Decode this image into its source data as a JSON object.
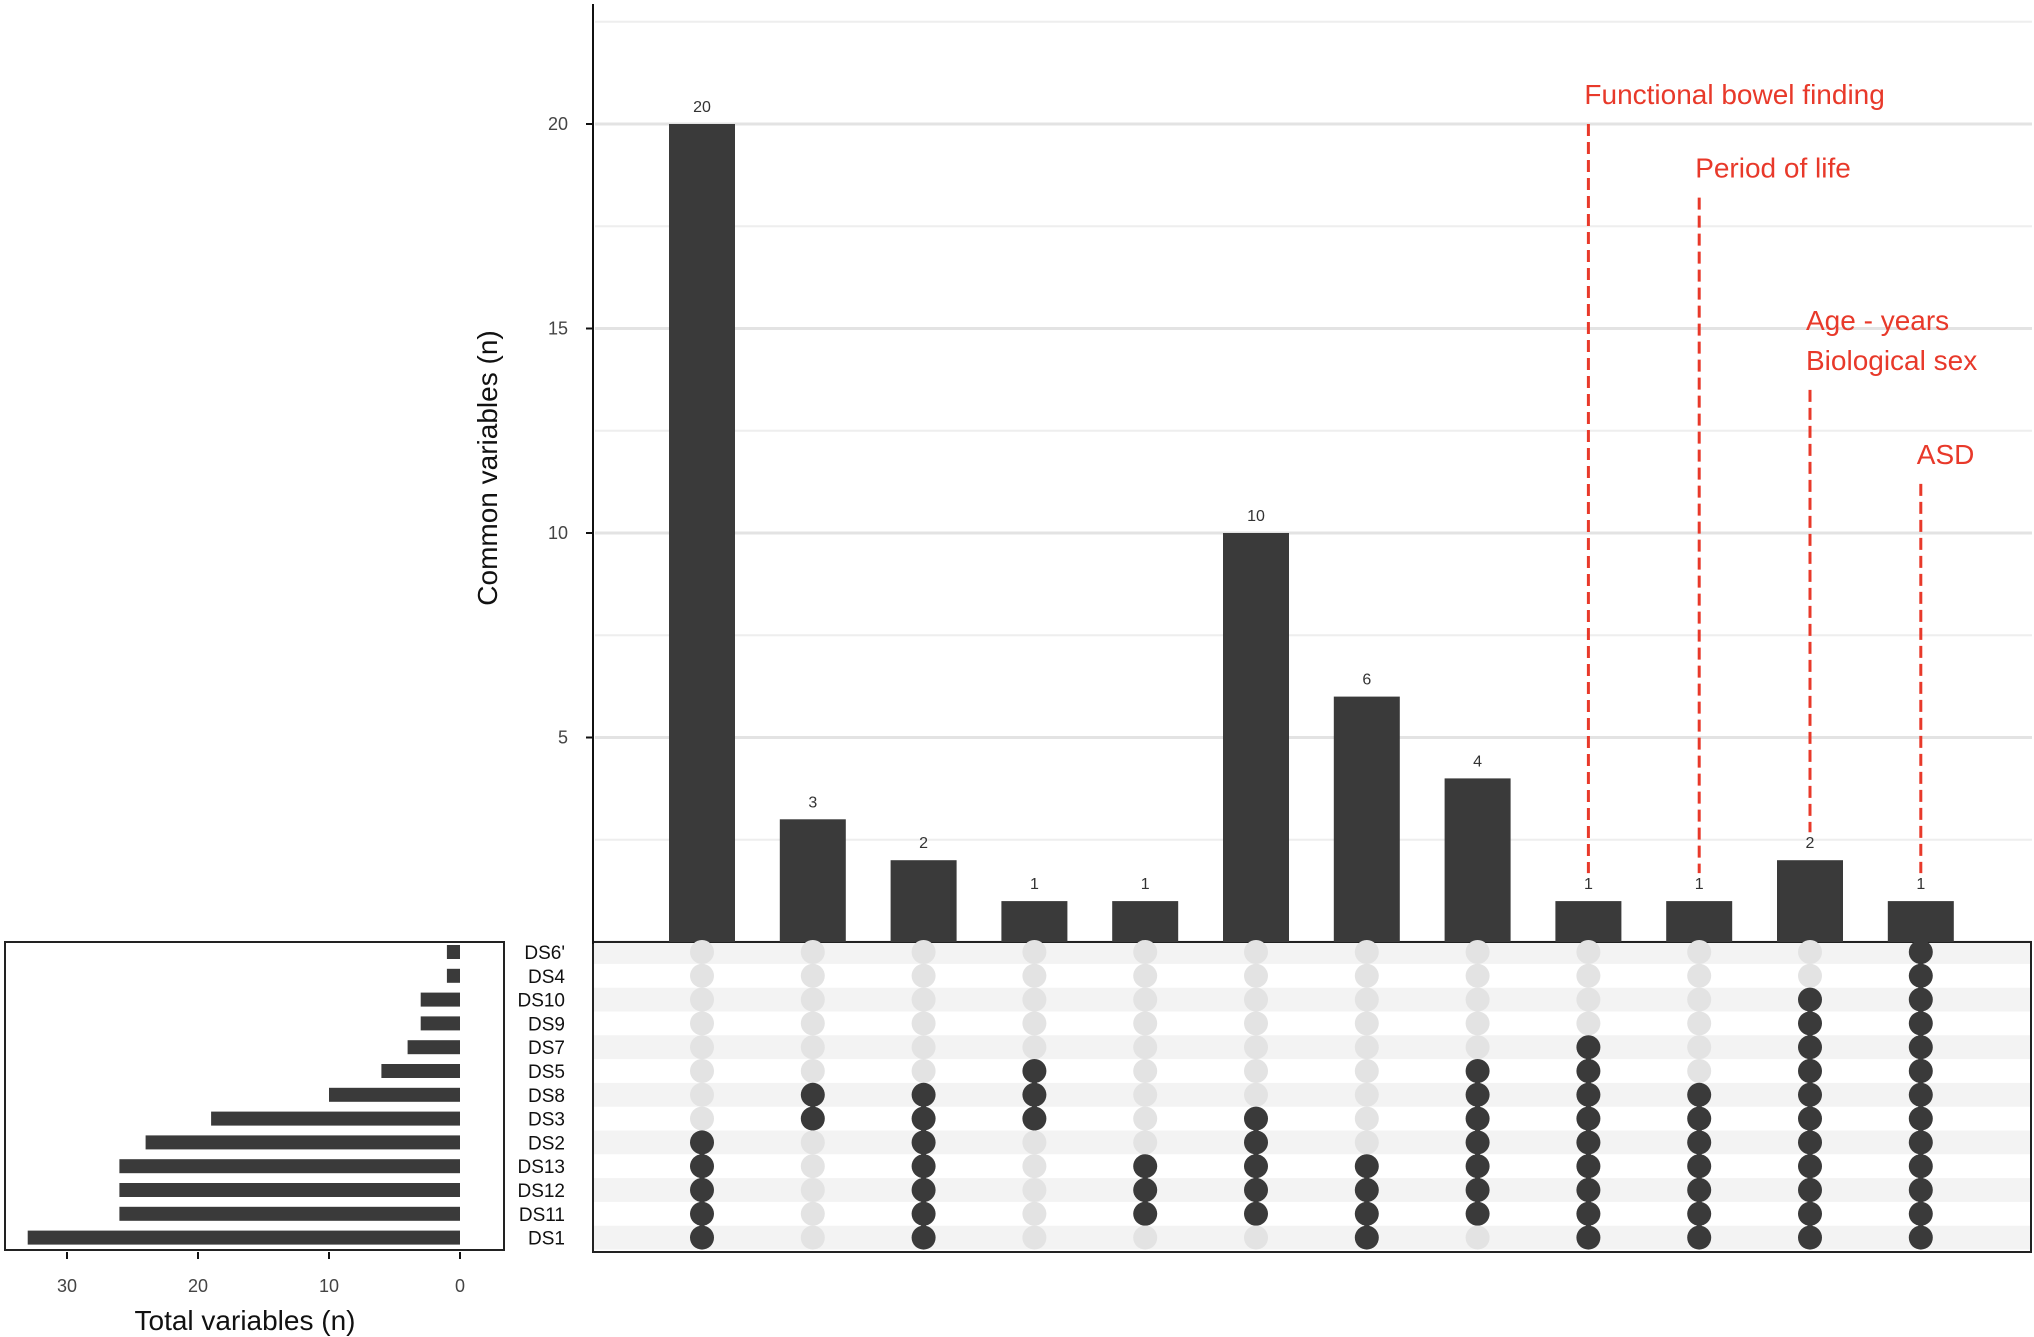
{
  "chart_data": [
    {
      "type": "bar",
      "ylabel": "Common variables (n)",
      "ylim": [
        0,
        22.5
      ],
      "yticks": [
        5,
        10,
        15,
        20
      ],
      "grid": true,
      "values": [
        20,
        3,
        2,
        1,
        1,
        10,
        6,
        4,
        1,
        1,
        2,
        1
      ],
      "value_labels": [
        "20",
        "3",
        "2",
        "1",
        "1",
        "10",
        "6",
        "4",
        "1",
        "1",
        "2",
        "1"
      ],
      "intersections": [
        [
          "DS2",
          "DS13",
          "DS12",
          "DS11",
          "DS1"
        ],
        [
          "DS8",
          "DS3"
        ],
        [
          "DS8",
          "DS3",
          "DS2",
          "DS13",
          "DS12",
          "DS11",
          "DS1"
        ],
        [
          "DS5",
          "DS8",
          "DS3"
        ],
        [
          "DS13",
          "DS12",
          "DS11"
        ],
        [
          "DS3",
          "DS2",
          "DS13",
          "DS12",
          "DS11"
        ],
        [
          "DS13",
          "DS12",
          "DS11",
          "DS1"
        ],
        [
          "DS5",
          "DS8",
          "DS3",
          "DS2",
          "DS13",
          "DS12",
          "DS11"
        ],
        [
          "DS7",
          "DS5",
          "DS8",
          "DS3",
          "DS2",
          "DS13",
          "DS12",
          "DS11",
          "DS1"
        ],
        [
          "DS8",
          "DS3",
          "DS2",
          "DS13",
          "DS12",
          "DS11",
          "DS1"
        ],
        [
          "DS10",
          "DS9",
          "DS7",
          "DS5",
          "DS8",
          "DS3",
          "DS2",
          "DS13",
          "DS12",
          "DS11",
          "DS1"
        ],
        [
          "DS6",
          "DS4",
          "DS10",
          "DS9",
          "DS7",
          "DS5",
          "DS8",
          "DS3",
          "DS2",
          "DS13",
          "DS12",
          "DS11",
          "DS1"
        ]
      ],
      "annotations": [
        {
          "bar_index": 8,
          "lines": [
            "Functional bowel finding"
          ],
          "top_value": 20.0
        },
        {
          "bar_index": 9,
          "lines": [
            "Period of life"
          ],
          "top_value": 18.2
        },
        {
          "bar_index": 10,
          "lines": [
            "Age - years",
            "Biological sex"
          ],
          "top_value": 13.5
        },
        {
          "bar_index": 11,
          "lines": [
            "ASD"
          ],
          "top_value": 11.2
        }
      ],
      "annotation_color": "#e8392a",
      "bar_color": "#3a3a3a"
    },
    {
      "type": "bar",
      "orientation": "horizontal",
      "xlabel": "Total variables (n)",
      "xlim": [
        35,
        0
      ],
      "xticks": [
        30,
        20,
        10,
        0
      ],
      "sets": [
        "DS6",
        "DS4",
        "DS10",
        "DS9",
        "DS7",
        "DS5",
        "DS8",
        "DS3",
        "DS2",
        "DS13",
        "DS12",
        "DS11",
        "DS1"
      ],
      "set_labels": [
        "DS6'",
        "DS4",
        "DS10",
        "DS9",
        "DS7",
        "DS5",
        "DS8",
        "DS3",
        "DS2",
        "DS13",
        "DS12",
        "DS11",
        "DS1"
      ],
      "values": [
        1,
        1,
        3,
        3,
        4,
        6,
        10,
        19,
        24,
        26,
        26,
        26,
        33
      ],
      "bar_color": "#3a3a3a"
    }
  ]
}
